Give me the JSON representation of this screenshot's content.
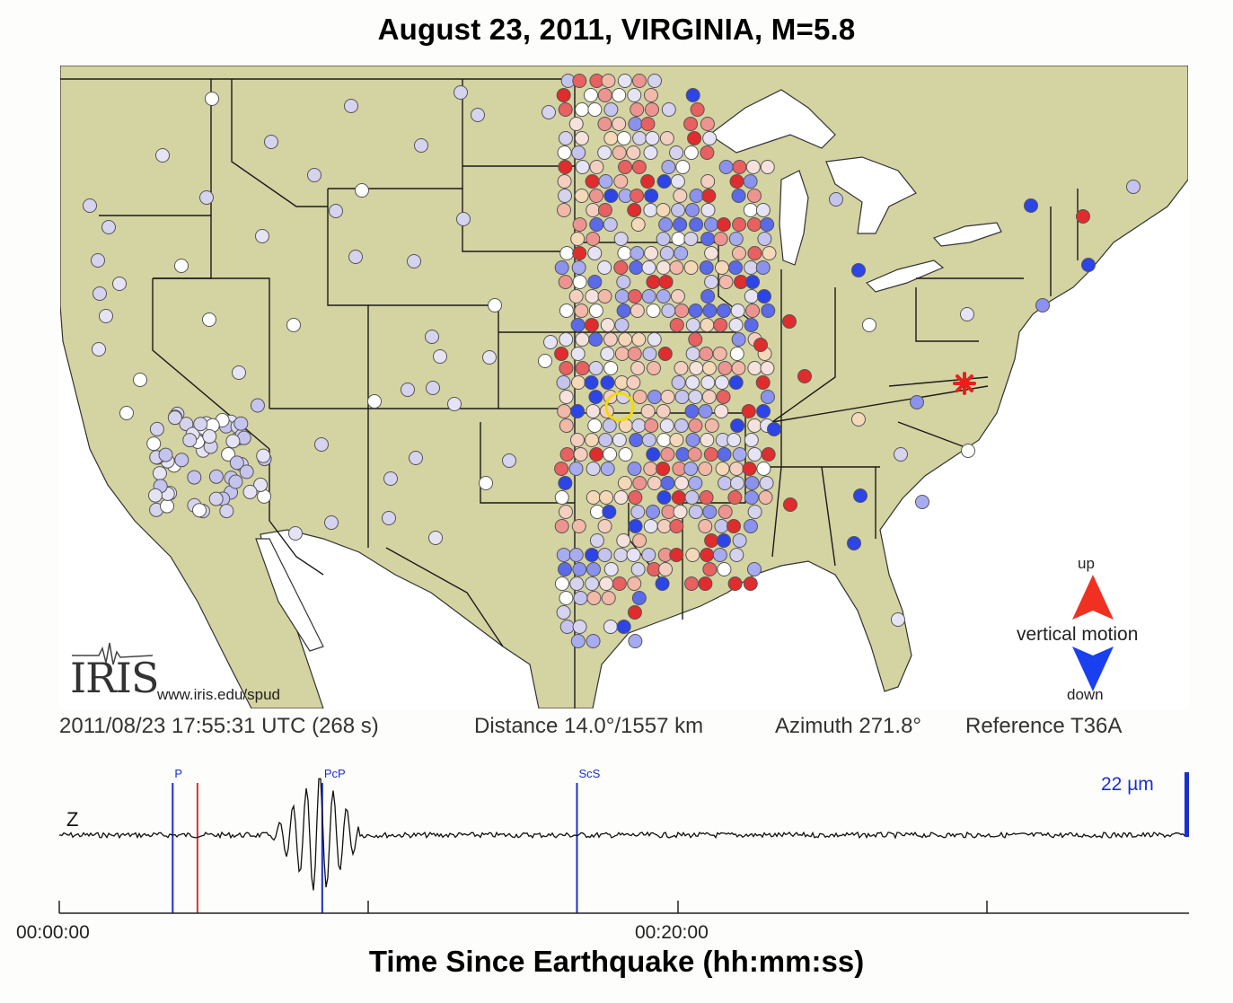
{
  "title": "August 23, 2011, VIRGINIA, M=5.8",
  "status": {
    "time": "2011/08/23 17:55:31 UTC (268 s)",
    "distance": "Distance  14.0°/1557 km",
    "azimuth": "Azimuth 271.8°",
    "reference": "Reference T36A"
  },
  "logo": {
    "text": "IRIS",
    "url": "www.iris.edu/spud"
  },
  "legend": {
    "up": "up",
    "label": "vertical motion",
    "down": "down",
    "up_color": "#f03020",
    "down_color": "#1a3ff0"
  },
  "seismogram": {
    "component": "Z",
    "scale": "22 µm",
    "phases": [
      {
        "label": "P",
        "time_s": 220,
        "color": "#1a2fcf"
      },
      {
        "label": "",
        "time_s": 268,
        "color": "#d83030"
      },
      {
        "label": "PcP",
        "time_s": 510,
        "color": "#1a2fcf"
      },
      {
        "label": "ScS",
        "time_s": 1004,
        "color": "#1a2fcf"
      }
    ],
    "ticks": [
      "00:00:00",
      "00:20:00"
    ],
    "xlabel": "Time Since Earthquake (hh:mm:ss)"
  },
  "colors": {
    "land": "#d4d3a2",
    "water": "#ffffff",
    "border": "#1b1b1b",
    "epicenter": "#e8201c",
    "reference": "#e8d000"
  }
}
